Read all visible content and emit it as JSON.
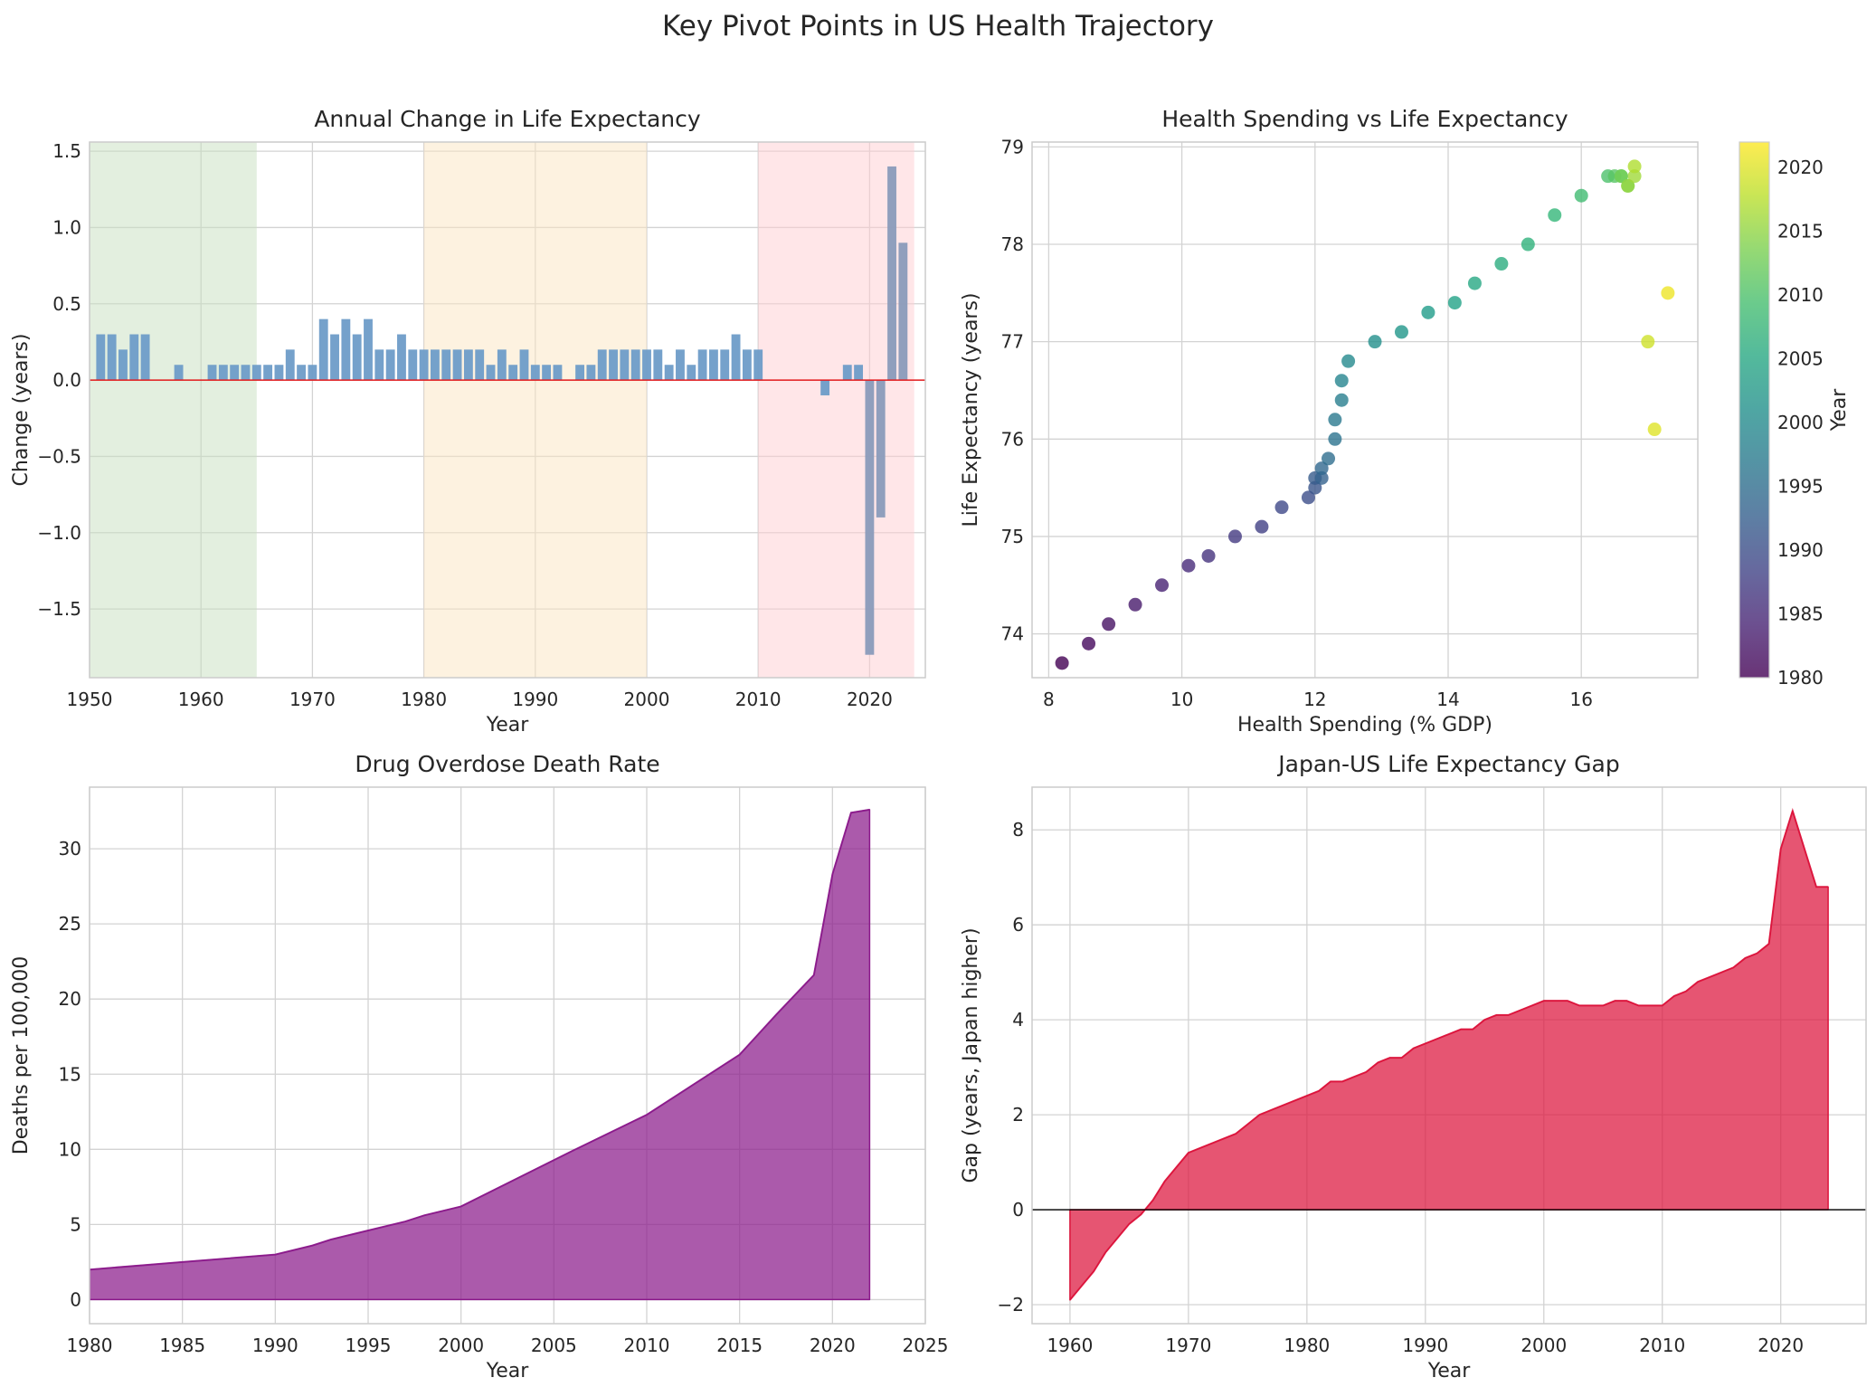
{
  "figure": {
    "title": "Key Pivot Points in US Health Trajectory"
  },
  "chart_data": [
    {
      "type": "bar",
      "title": "Annual Change in Life Expectancy",
      "xlabel": "Year",
      "ylabel": "Change (years)",
      "xlim": [
        1950,
        2025
      ],
      "ylim": [
        -1.95,
        1.56
      ],
      "xticks": [
        1950,
        1960,
        1970,
        1980,
        1990,
        2000,
        2010,
        2020
      ],
      "yticks": [
        -1.5,
        -1.0,
        -0.5,
        0.0,
        0.5,
        1.0,
        1.5
      ],
      "grid": true,
      "zero_line_color": "#e31a1c",
      "shaded_periods": [
        {
          "start": 1950,
          "end": 1965,
          "color": "#c8e0c0"
        },
        {
          "start": 1980,
          "end": 2000,
          "color": "#fbe6c2"
        },
        {
          "start": 2010,
          "end": 2024,
          "color": "#ffcdd2"
        }
      ],
      "x": [
        1951,
        1952,
        1953,
        1954,
        1955,
        1956,
        1957,
        1958,
        1959,
        1960,
        1961,
        1962,
        1963,
        1964,
        1965,
        1966,
        1967,
        1968,
        1969,
        1970,
        1971,
        1972,
        1973,
        1974,
        1975,
        1976,
        1977,
        1978,
        1979,
        1980,
        1981,
        1982,
        1983,
        1984,
        1985,
        1986,
        1987,
        1988,
        1989,
        1990,
        1991,
        1992,
        1993,
        1994,
        1995,
        1996,
        1997,
        1998,
        1999,
        2000,
        2001,
        2002,
        2003,
        2004,
        2005,
        2006,
        2007,
        2008,
        2009,
        2010,
        2011,
        2012,
        2013,
        2014,
        2015,
        2016,
        2017,
        2018,
        2019,
        2020,
        2021,
        2022,
        2023
      ],
      "values": [
        0.3,
        0.3,
        0.2,
        0.3,
        0.3,
        0,
        0,
        0.1,
        0,
        0,
        0.1,
        0.1,
        0.1,
        0.1,
        0.1,
        0.1,
        0.1,
        0.2,
        0.1,
        0.1,
        0.4,
        0.3,
        0.4,
        0.3,
        0.4,
        0.2,
        0.2,
        0.3,
        0.2,
        0.2,
        0.2,
        0.2,
        0.2,
        0.2,
        0.2,
        0.1,
        0.2,
        0.1,
        0.2,
        0.1,
        0.1,
        0.1,
        0,
        0.1,
        0.1,
        0.2,
        0.2,
        0.2,
        0.2,
        0.2,
        0.2,
        0.1,
        0.2,
        0.1,
        0.2,
        0.2,
        0.2,
        0.3,
        0.2,
        0.2,
        0,
        0,
        0,
        0,
        0,
        -0.1,
        0,
        0.1,
        0.1,
        -1.8,
        -0.9,
        1.4,
        0.9
      ],
      "bar_color_early": "#6e9cc8",
      "bar_color_late": "#8a9bbb"
    },
    {
      "type": "scatter",
      "title": "Health Spending vs Life Expectancy",
      "xlabel": "Health Spending (% GDP)",
      "ylabel": "Life Expectancy (years)",
      "xlim": [
        7.75,
        17.75
      ],
      "ylim": [
        73.55,
        79.05
      ],
      "xticks": [
        8,
        10,
        12,
        14,
        16
      ],
      "yticks": [
        74,
        75,
        76,
        77,
        78,
        79
      ],
      "grid": true,
      "colorbar": {
        "label": "Year",
        "min": 1980,
        "max": 2022,
        "ticks": [
          1980,
          1985,
          1990,
          1995,
          2000,
          2005,
          2010,
          2015,
          2020
        ],
        "colormap": "viridis"
      },
      "points": [
        {
          "year": 1980,
          "x": 8.2,
          "y": 73.7
        },
        {
          "year": 1981,
          "x": 8.6,
          "y": 73.9
        },
        {
          "year": 1982,
          "x": 8.9,
          "y": 74.1
        },
        {
          "year": 1983,
          "x": 9.3,
          "y": 74.3
        },
        {
          "year": 1984,
          "x": 9.7,
          "y": 74.5
        },
        {
          "year": 1985,
          "x": 10.1,
          "y": 74.7
        },
        {
          "year": 1986,
          "x": 10.4,
          "y": 74.8
        },
        {
          "year": 1987,
          "x": 10.8,
          "y": 75.0
        },
        {
          "year": 1988,
          "x": 11.2,
          "y": 75.1
        },
        {
          "year": 1989,
          "x": 11.5,
          "y": 75.3
        },
        {
          "year": 1990,
          "x": 11.9,
          "y": 75.4
        },
        {
          "year": 1991,
          "x": 12.0,
          "y": 75.5
        },
        {
          "year": 1992,
          "x": 12.0,
          "y": 75.6
        },
        {
          "year": 1993,
          "x": 12.1,
          "y": 75.6
        },
        {
          "year": 1994,
          "x": 12.1,
          "y": 75.7
        },
        {
          "year": 1995,
          "x": 12.2,
          "y": 75.8
        },
        {
          "year": 1996,
          "x": 12.3,
          "y": 76.0
        },
        {
          "year": 1997,
          "x": 12.3,
          "y": 76.2
        },
        {
          "year": 1998,
          "x": 12.4,
          "y": 76.4
        },
        {
          "year": 1999,
          "x": 12.4,
          "y": 76.6
        },
        {
          "year": 2000,
          "x": 12.5,
          "y": 76.8
        },
        {
          "year": 2001,
          "x": 12.9,
          "y": 77.0
        },
        {
          "year": 2002,
          "x": 13.3,
          "y": 77.1
        },
        {
          "year": 2003,
          "x": 13.7,
          "y": 77.3
        },
        {
          "year": 2004,
          "x": 14.1,
          "y": 77.4
        },
        {
          "year": 2005,
          "x": 14.4,
          "y": 77.6
        },
        {
          "year": 2006,
          "x": 14.8,
          "y": 77.8
        },
        {
          "year": 2007,
          "x": 15.2,
          "y": 78.0
        },
        {
          "year": 2008,
          "x": 15.6,
          "y": 78.3
        },
        {
          "year": 2009,
          "x": 16.0,
          "y": 78.5
        },
        {
          "year": 2010,
          "x": 16.4,
          "y": 78.7
        },
        {
          "year": 2011,
          "x": 16.5,
          "y": 78.7
        },
        {
          "year": 2012,
          "x": 16.6,
          "y": 78.7
        },
        {
          "year": 2013,
          "x": 16.6,
          "y": 78.7
        },
        {
          "year": 2014,
          "x": 16.7,
          "y": 78.6
        },
        {
          "year": 2015,
          "x": 16.7,
          "y": 78.6
        },
        {
          "year": 2016,
          "x": 16.8,
          "y": 78.7
        },
        {
          "year": 2017,
          "x": 16.8,
          "y": 78.8
        },
        {
          "year": 2019,
          "x": 17.0,
          "y": 77.0
        },
        {
          "year": 2020,
          "x": 17.1,
          "y": 76.1
        },
        {
          "year": 2021,
          "x": 17.3,
          "y": 77.5
        }
      ]
    },
    {
      "type": "area",
      "title": "Drug Overdose Death Rate",
      "xlabel": "Year",
      "ylabel": "Deaths per 100,000",
      "xlim": [
        1980,
        2025
      ],
      "ylim": [
        -1.6,
        34.1
      ],
      "xticks": [
        1980,
        1985,
        1990,
        1995,
        2000,
        2005,
        2010,
        2015,
        2020,
        2025
      ],
      "yticks": [
        0,
        5,
        10,
        15,
        20,
        25,
        30
      ],
      "grid": true,
      "color": "#8b1a8b",
      "x": [
        1980,
        1985,
        1990,
        1992,
        1993,
        1995,
        1997,
        1998,
        2000,
        2006,
        2010,
        2015,
        2017,
        2019,
        2020,
        2021,
        2022
      ],
      "values": [
        2.0,
        2.5,
        3.0,
        3.6,
        4.0,
        4.6,
        5.2,
        5.6,
        6.2,
        9.9,
        12.3,
        16.3,
        19.0,
        21.6,
        28.3,
        32.4,
        32.6
      ]
    },
    {
      "type": "area",
      "title": "Japan-US Life Expectancy Gap",
      "xlabel": "Year",
      "ylabel": "Gap (years, Japan higher)",
      "xlim": [
        1956.8,
        2027.2
      ],
      "ylim": [
        -2.4,
        8.9
      ],
      "xticks": [
        1960,
        1970,
        1980,
        1990,
        2000,
        2010,
        2020
      ],
      "yticks": [
        -2,
        0,
        2,
        4,
        6,
        8
      ],
      "grid": true,
      "color": "#dc143c",
      "x": [
        1960,
        1961,
        1962,
        1963,
        1964,
        1965,
        1966,
        1967,
        1968,
        1969,
        1970,
        1971,
        1972,
        1973,
        1974,
        1975,
        1976,
        1977,
        1978,
        1979,
        1980,
        1981,
        1982,
        1983,
        1984,
        1985,
        1986,
        1987,
        1988,
        1989,
        1990,
        1991,
        1992,
        1993,
        1994,
        1995,
        1996,
        1997,
        1998,
        1999,
        2000,
        2001,
        2002,
        2003,
        2004,
        2005,
        2006,
        2007,
        2008,
        2009,
        2010,
        2011,
        2012,
        2013,
        2014,
        2015,
        2016,
        2017,
        2018,
        2019,
        2020,
        2021,
        2022,
        2023,
        2024
      ],
      "values": [
        -1.9,
        -1.6,
        -1.3,
        -0.9,
        -0.6,
        -0.3,
        -0.1,
        0.2,
        0.6,
        0.9,
        1.2,
        1.3,
        1.4,
        1.5,
        1.6,
        1.8,
        2.0,
        2.1,
        2.2,
        2.3,
        2.4,
        2.5,
        2.7,
        2.7,
        2.8,
        2.9,
        3.1,
        3.2,
        3.2,
        3.4,
        3.5,
        3.6,
        3.7,
        3.8,
        3.8,
        4.0,
        4.1,
        4.1,
        4.2,
        4.3,
        4.4,
        4.4,
        4.4,
        4.3,
        4.3,
        4.3,
        4.4,
        4.4,
        4.3,
        4.3,
        4.3,
        4.5,
        4.6,
        4.8,
        4.9,
        5.0,
        5.1,
        5.3,
        5.4,
        5.6,
        7.6,
        8.4,
        7.6,
        6.8,
        6.8
      ]
    }
  ]
}
